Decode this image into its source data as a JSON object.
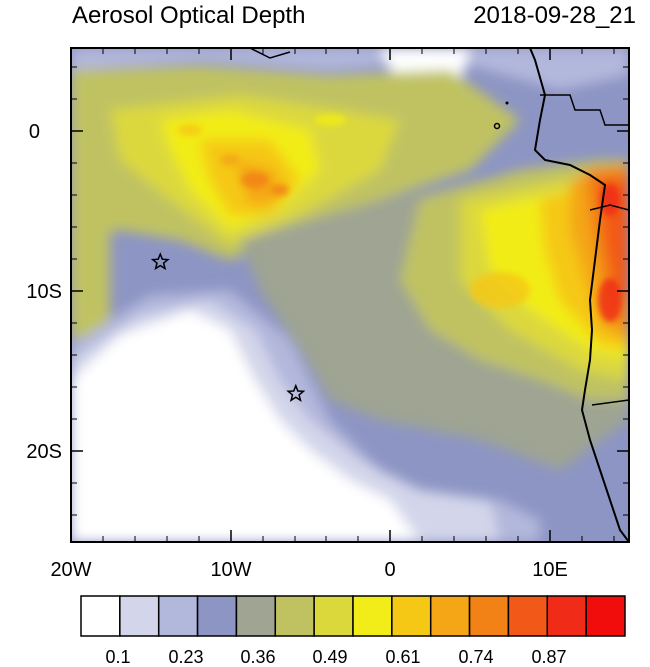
{
  "title": "Aerosol Optical Depth",
  "timestamp": "2018-09-28_21",
  "x_ticks": [
    "20W",
    "10W",
    "0",
    "10E"
  ],
  "y_ticks": [
    "0",
    "10S",
    "20S"
  ],
  "colorbar": {
    "colors": [
      "#ffffff",
      "#d3d6ea",
      "#b2b7dc",
      "#8d95c4",
      "#9fa493",
      "#c0c262",
      "#dbd83c",
      "#f2ec18",
      "#f5c816",
      "#f4a616",
      "#f28116",
      "#f25818",
      "#f02c18",
      "#f20d0d"
    ],
    "labels": [
      "0.1",
      "0.23",
      "0.36",
      "0.49",
      "0.61",
      "0.74",
      "0.87"
    ]
  },
  "markers": [
    {
      "name": "star-8S-14W",
      "lon": -14.4,
      "lat": -8.0
    },
    {
      "name": "star-16S-6W",
      "lon": -5.9,
      "lat": -16.0
    }
  ],
  "map": {
    "lon_range": [
      -20,
      15
    ],
    "lat_range": [
      -25,
      5
    ]
  }
}
